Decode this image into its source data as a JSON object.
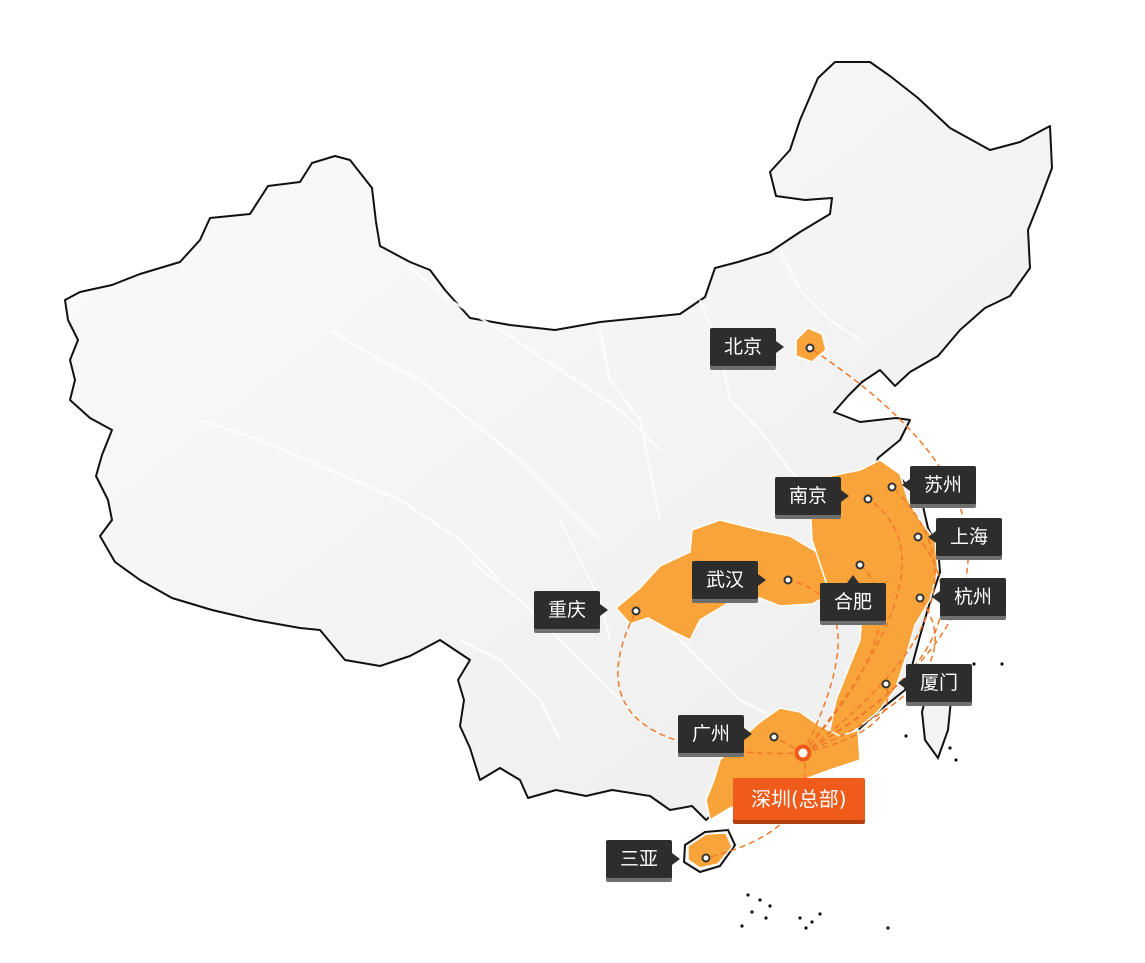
{
  "map": {
    "colors": {
      "land": "#f3f3f3",
      "border": "#111111",
      "province_line": "#ffffff",
      "highlight": "#f8a43a",
      "route": "#f07a2a",
      "label_bg": "#2d2d2d",
      "hq_bg": "#f05a1a"
    },
    "hq": {
      "name": "深圳(总部)"
    },
    "cities": [
      {
        "id": "beijing",
        "name": "北京"
      },
      {
        "id": "nanjing",
        "name": "南京"
      },
      {
        "id": "suzhou",
        "name": "苏州"
      },
      {
        "id": "shanghai",
        "name": "上海"
      },
      {
        "id": "wuhan",
        "name": "武汉"
      },
      {
        "id": "hefei",
        "name": "合肥"
      },
      {
        "id": "hangzhou",
        "name": "杭州"
      },
      {
        "id": "chongqing",
        "name": "重庆"
      },
      {
        "id": "xiamen",
        "name": "厦门"
      },
      {
        "id": "guangzhou",
        "name": "广州"
      },
      {
        "id": "sanya",
        "name": "三亚"
      }
    ]
  }
}
